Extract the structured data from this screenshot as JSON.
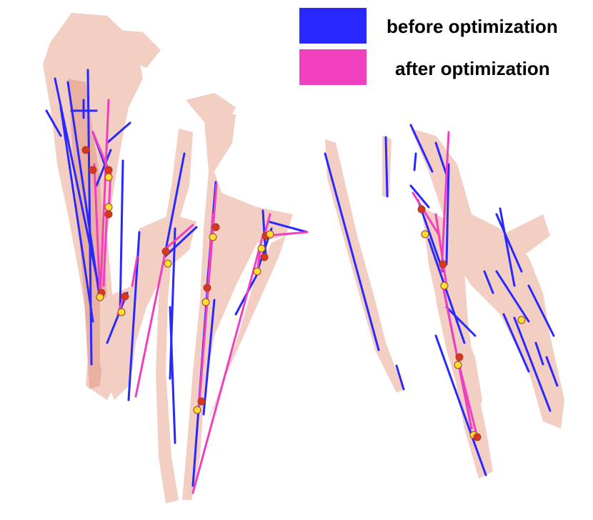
{
  "legend": {
    "before": {
      "label": "before optimization",
      "color": "#2828ff"
    },
    "after": {
      "label": "after optimization",
      "color": "#f040c0"
    }
  },
  "colors": {
    "tissue": "#f2c9bc",
    "tissue_dark": "#e8a998",
    "node_red": "#dd3322",
    "node_yellow": "#ffdd33",
    "node_stroke": "#994422"
  }
}
